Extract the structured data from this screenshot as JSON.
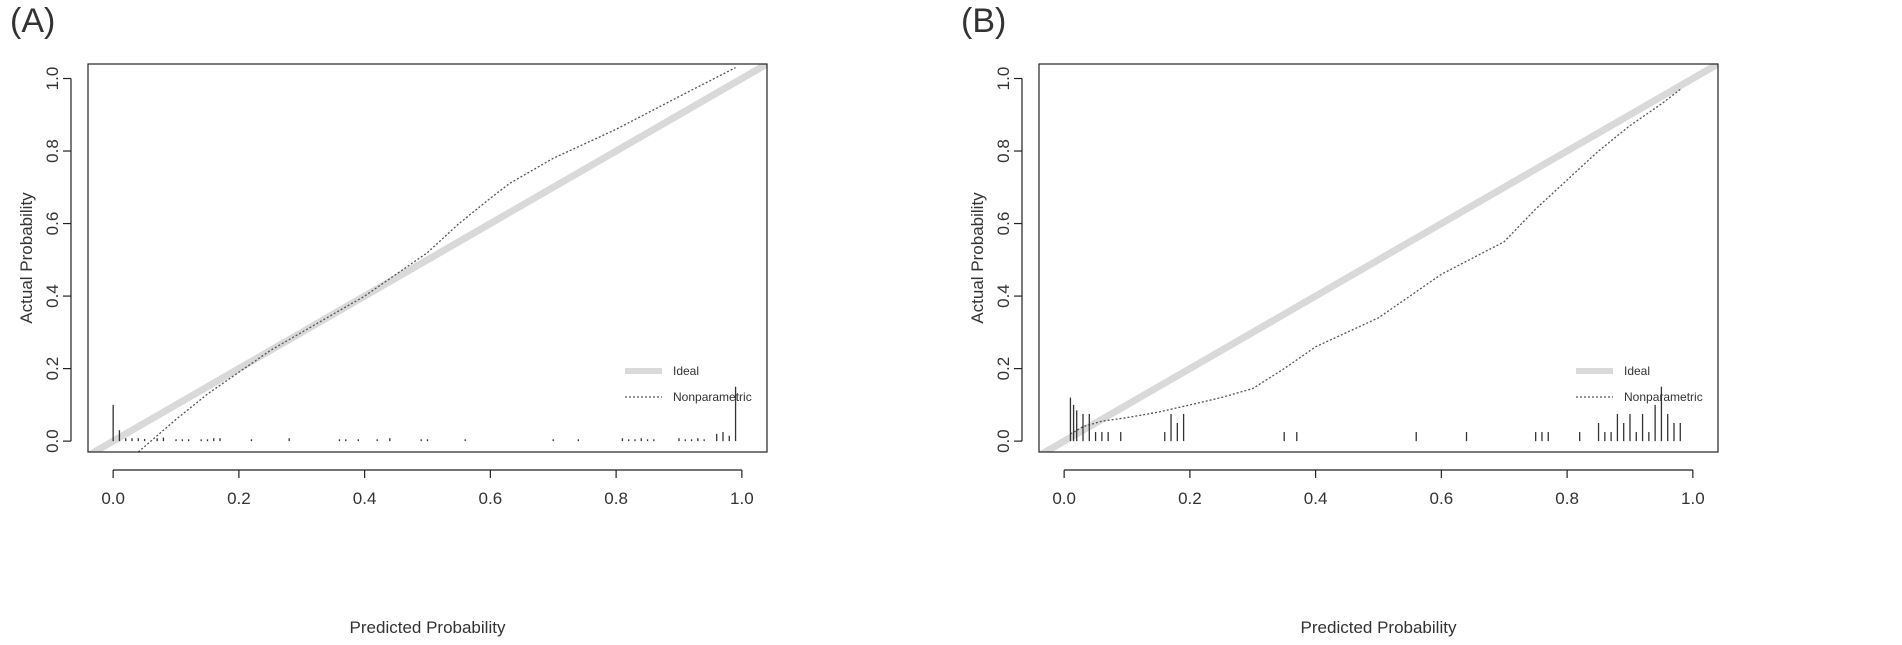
{
  "chart_data": [
    {
      "type": "line",
      "panel_label": "(A)",
      "xlabel": "Predicted Probability",
      "ylabel": "Actual Probability",
      "xlim": [
        -0.04,
        1.04
      ],
      "ylim": [
        -0.03,
        1.04
      ],
      "x_ticks": [
        0.0,
        0.2,
        0.4,
        0.6,
        0.8,
        1.0
      ],
      "x_tick_labels": [
        "0.0",
        "0.2",
        "0.4",
        "0.6",
        "0.8",
        "1.0"
      ],
      "y_ticks": [
        0.0,
        0.2,
        0.4,
        0.6,
        0.8,
        1.0
      ],
      "y_tick_labels": [
        "0.0",
        "0.2",
        "0.4",
        "0.6",
        "0.8",
        "1.0"
      ],
      "legend": {
        "position": "bottom-right",
        "entries": [
          "Ideal",
          "Nonparametric"
        ]
      },
      "grid": false,
      "series": [
        {
          "name": "Ideal",
          "style": "solid-thick",
          "color": "#d9d9d9",
          "x": [
            -0.04,
            1.04
          ],
          "y": [
            -0.04,
            1.04
          ]
        },
        {
          "name": "Nonparametric",
          "style": "dotted",
          "color": "#555555",
          "x": [
            0.04,
            0.1,
            0.15,
            0.2,
            0.25,
            0.3,
            0.35,
            0.4,
            0.45,
            0.5,
            0.55,
            0.6,
            0.63,
            0.7,
            0.8,
            0.9,
            0.99
          ],
          "y": [
            -0.03,
            0.06,
            0.13,
            0.19,
            0.25,
            0.3,
            0.35,
            0.4,
            0.46,
            0.52,
            0.6,
            0.67,
            0.71,
            0.78,
            0.86,
            0.95,
            1.03
          ]
        }
      ],
      "rug": [
        {
          "x": 0.0,
          "h": 0.1
        },
        {
          "x": 0.01,
          "h": 0.03
        },
        {
          "x": 0.02,
          "h": 0.008
        },
        {
          "x": 0.03,
          "h": 0.008
        },
        {
          "x": 0.04,
          "h": 0.008
        },
        {
          "x": 0.05,
          "h": 0.006
        },
        {
          "x": 0.07,
          "h": 0.008
        },
        {
          "x": 0.08,
          "h": 0.01
        },
        {
          "x": 0.1,
          "h": 0.005
        },
        {
          "x": 0.11,
          "h": 0.005
        },
        {
          "x": 0.12,
          "h": 0.005
        },
        {
          "x": 0.14,
          "h": 0.005
        },
        {
          "x": 0.15,
          "h": 0.005
        },
        {
          "x": 0.16,
          "h": 0.008
        },
        {
          "x": 0.17,
          "h": 0.008
        },
        {
          "x": 0.22,
          "h": 0.005
        },
        {
          "x": 0.28,
          "h": 0.008
        },
        {
          "x": 0.36,
          "h": 0.005
        },
        {
          "x": 0.37,
          "h": 0.005
        },
        {
          "x": 0.39,
          "h": 0.005
        },
        {
          "x": 0.42,
          "h": 0.005
        },
        {
          "x": 0.44,
          "h": 0.008
        },
        {
          "x": 0.49,
          "h": 0.005
        },
        {
          "x": 0.5,
          "h": 0.005
        },
        {
          "x": 0.56,
          "h": 0.005
        },
        {
          "x": 0.7,
          "h": 0.005
        },
        {
          "x": 0.74,
          "h": 0.005
        },
        {
          "x": 0.81,
          "h": 0.008
        },
        {
          "x": 0.82,
          "h": 0.005
        },
        {
          "x": 0.83,
          "h": 0.005
        },
        {
          "x": 0.84,
          "h": 0.008
        },
        {
          "x": 0.85,
          "h": 0.005
        },
        {
          "x": 0.86,
          "h": 0.005
        },
        {
          "x": 0.9,
          "h": 0.008
        },
        {
          "x": 0.91,
          "h": 0.005
        },
        {
          "x": 0.92,
          "h": 0.005
        },
        {
          "x": 0.93,
          "h": 0.008
        },
        {
          "x": 0.94,
          "h": 0.005
        },
        {
          "x": 0.96,
          "h": 0.02
        },
        {
          "x": 0.97,
          "h": 0.025
        },
        {
          "x": 0.98,
          "h": 0.015
        },
        {
          "x": 0.99,
          "h": 0.15
        }
      ]
    },
    {
      "type": "line",
      "panel_label": "(B)",
      "xlabel": "Predicted Probability",
      "ylabel": "Actual Probability",
      "xlim": [
        -0.04,
        1.04
      ],
      "ylim": [
        -0.03,
        1.04
      ],
      "x_ticks": [
        0.0,
        0.2,
        0.4,
        0.6,
        0.8,
        1.0
      ],
      "x_tick_labels": [
        "0.0",
        "0.2",
        "0.4",
        "0.6",
        "0.8",
        "1.0"
      ],
      "y_ticks": [
        0.0,
        0.2,
        0.4,
        0.6,
        0.8,
        1.0
      ],
      "y_tick_labels": [
        "0.0",
        "0.2",
        "0.4",
        "0.6",
        "0.8",
        "1.0"
      ],
      "legend": {
        "position": "bottom-right",
        "entries": [
          "Ideal",
          "Nonparametric"
        ]
      },
      "grid": false,
      "series": [
        {
          "name": "Ideal",
          "style": "solid-thick",
          "color": "#d9d9d9",
          "x": [
            -0.04,
            1.04
          ],
          "y": [
            -0.04,
            1.04
          ]
        },
        {
          "name": "Nonparametric",
          "style": "dotted",
          "color": "#555555",
          "x": [
            0.01,
            0.03,
            0.06,
            0.1,
            0.15,
            0.2,
            0.25,
            0.3,
            0.35,
            0.4,
            0.5,
            0.6,
            0.7,
            0.75,
            0.8,
            0.85,
            0.9,
            0.95,
            0.98
          ],
          "y": [
            0.02,
            0.04,
            0.055,
            0.065,
            0.08,
            0.1,
            0.12,
            0.145,
            0.2,
            0.26,
            0.34,
            0.46,
            0.55,
            0.64,
            0.72,
            0.8,
            0.87,
            0.93,
            0.97
          ]
        }
      ],
      "rug": [
        {
          "x": 0.01,
          "h": 0.12
        },
        {
          "x": 0.015,
          "h": 0.1
        },
        {
          "x": 0.02,
          "h": 0.085
        },
        {
          "x": 0.03,
          "h": 0.075
        },
        {
          "x": 0.04,
          "h": 0.075
        },
        {
          "x": 0.05,
          "h": 0.025
        },
        {
          "x": 0.06,
          "h": 0.025
        },
        {
          "x": 0.07,
          "h": 0.025
        },
        {
          "x": 0.09,
          "h": 0.025
        },
        {
          "x": 0.16,
          "h": 0.025
        },
        {
          "x": 0.17,
          "h": 0.075
        },
        {
          "x": 0.18,
          "h": 0.05
        },
        {
          "x": 0.19,
          "h": 0.075
        },
        {
          "x": 0.35,
          "h": 0.025
        },
        {
          "x": 0.37,
          "h": 0.025
        },
        {
          "x": 0.56,
          "h": 0.025
        },
        {
          "x": 0.64,
          "h": 0.025
        },
        {
          "x": 0.75,
          "h": 0.025
        },
        {
          "x": 0.76,
          "h": 0.025
        },
        {
          "x": 0.77,
          "h": 0.025
        },
        {
          "x": 0.82,
          "h": 0.025
        },
        {
          "x": 0.85,
          "h": 0.05
        },
        {
          "x": 0.86,
          "h": 0.025
        },
        {
          "x": 0.87,
          "h": 0.025
        },
        {
          "x": 0.88,
          "h": 0.075
        },
        {
          "x": 0.89,
          "h": 0.05
        },
        {
          "x": 0.9,
          "h": 0.075
        },
        {
          "x": 0.91,
          "h": 0.025
        },
        {
          "x": 0.92,
          "h": 0.075
        },
        {
          "x": 0.93,
          "h": 0.025
        },
        {
          "x": 0.94,
          "h": 0.1
        },
        {
          "x": 0.95,
          "h": 0.15
        },
        {
          "x": 0.96,
          "h": 0.075
        },
        {
          "x": 0.97,
          "h": 0.05
        },
        {
          "x": 0.98,
          "h": 0.05
        }
      ]
    }
  ]
}
